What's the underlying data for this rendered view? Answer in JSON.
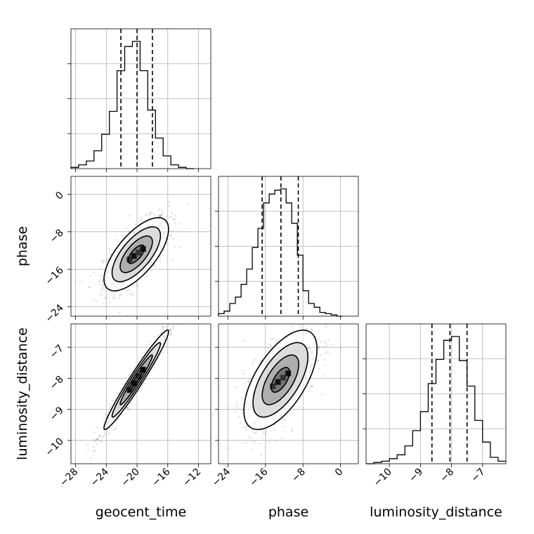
{
  "chart_data": {
    "type": "corner",
    "parameters": [
      {
        "name": "geocent_time",
        "axis_label": "geocent_time",
        "range": [
          -28.6,
          -10.4
        ],
        "ticks": [
          -28,
          -24,
          -20,
          -16,
          -12
        ],
        "quantiles": [
          -22.1,
          -20.0,
          -18.0
        ],
        "hist_bin_edges": [
          -28.6,
          -27.6,
          -26.6,
          -25.6,
          -24.6,
          -23.6,
          -22.6,
          -21.6,
          -20.6,
          -19.6,
          -18.6,
          -17.6,
          -16.6,
          -15.6,
          -14.6,
          -13.6,
          -12.6
        ],
        "hist_counts": [
          1,
          3,
          6,
          14,
          27,
          45,
          77,
          96,
          100,
          77,
          46,
          24,
          10,
          3,
          1,
          0
        ]
      },
      {
        "name": "phase",
        "axis_label": "phase",
        "range": [
          -26.0,
          3.8
        ],
        "ticks": [
          -24,
          -16,
          -8,
          0
        ],
        "quantiles": [
          -16.7,
          -12.7,
          -9.0
        ],
        "hist_bin_edges": [
          -26.0,
          -24.8,
          -23.6,
          -22.4,
          -21.2,
          -20.0,
          -18.8,
          -17.6,
          -16.4,
          -15.2,
          -14.0,
          -12.8,
          -11.6,
          -10.4,
          -9.2,
          -8.0,
          -6.8,
          -5.6,
          -4.4,
          -3.2,
          -2.0,
          -0.8,
          0.4
        ],
        "hist_counts": [
          2,
          4,
          10,
          15,
          25,
          37,
          54,
          69,
          89,
          96,
          99,
          100,
          89,
          73,
          48,
          20,
          10,
          7,
          3,
          2,
          1,
          0
        ]
      },
      {
        "name": "luminosity_distance",
        "axis_label": "luminosity_distance",
        "range": [
          -10.75,
          -6.25
        ],
        "ticks": [
          -10,
          -9,
          -8,
          -7
        ],
        "quantiles": [
          -8.63,
          -8.05,
          -7.5
        ],
        "hist_bin_edges": [
          -10.75,
          -10.5,
          -10.25,
          -10.0,
          -9.75,
          -9.5,
          -9.25,
          -9.0,
          -8.75,
          -8.5,
          -8.25,
          -8.0,
          -7.75,
          -7.5,
          -7.25,
          -7.0,
          -6.75,
          -6.5,
          -6.25
        ],
        "hist_counts": [
          0,
          1,
          2,
          4,
          7,
          14,
          26,
          41,
          63,
          82,
          97,
          100,
          81,
          61,
          34,
          17,
          5,
          2
        ]
      }
    ],
    "pairs": [
      {
        "x": "geocent_time",
        "y": "phase",
        "mean": [
          -20.1,
          -12.8
        ],
        "sd": [
          2.1,
          3.9
        ],
        "corr": 0.68
      },
      {
        "x": "geocent_time",
        "y": "luminosity_distance",
        "mean": [
          -20.1,
          -8.05
        ],
        "sd": [
          2.1,
          0.8
        ],
        "corr": 0.97
      },
      {
        "x": "phase",
        "y": "luminosity_distance",
        "mean": [
          -12.8,
          -8.05
        ],
        "sd": [
          3.9,
          0.8
        ],
        "corr": 0.62
      }
    ],
    "contour_levels_sigma": [
      0.5,
      1.0,
      1.5,
      2.0
    ],
    "grid": true
  }
}
